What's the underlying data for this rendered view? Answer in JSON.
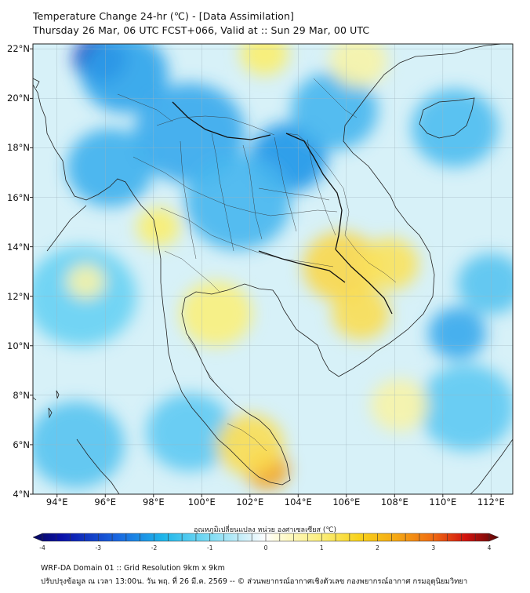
{
  "title": {
    "line1": "Temperature Change 24-hr (℃) - [Data Assimilation]",
    "line2": "Thursday 26 Mar, 06 UTC FCST+066, Valid at :: Sun 29 Mar, 00 UTC"
  },
  "map": {
    "lat_labels": [
      "22°N",
      "20°N",
      "18°N",
      "16°N",
      "14°N",
      "12°N",
      "10°N",
      "8°N",
      "6°N",
      "4°N"
    ],
    "lon_labels": [
      "94°E",
      "96°E",
      "98°E",
      "100°E",
      "102°E",
      "104°E",
      "106°E",
      "108°E",
      "110°E",
      "112°E"
    ],
    "lat_values": [
      22,
      20,
      18,
      16,
      14,
      12,
      10,
      8,
      6,
      4
    ],
    "lon_values": [
      94,
      96,
      98,
      100,
      102,
      104,
      106,
      108,
      110,
      112
    ],
    "lat_range": [
      4,
      22.2
    ],
    "lon_range": [
      93,
      112.9
    ],
    "anomalies": [
      {
        "lon": 95.8,
        "lat": 21.6,
        "value": -3.0,
        "r": 1.1
      },
      {
        "lon": 96.8,
        "lat": 21.0,
        "value": -1.8,
        "r": 1.8
      },
      {
        "lon": 99.5,
        "lat": 18.6,
        "value": -1.7,
        "r": 2.3
      },
      {
        "lon": 96.2,
        "lat": 17.2,
        "value": -1.6,
        "r": 1.8
      },
      {
        "lon": 103.6,
        "lat": 17.6,
        "value": -2.0,
        "r": 1.6
      },
      {
        "lon": 105.5,
        "lat": 19.5,
        "value": -1.5,
        "r": 1.8
      },
      {
        "lon": 101.5,
        "lat": 15.8,
        "value": -1.5,
        "r": 2.2
      },
      {
        "lon": 110.5,
        "lat": 18.8,
        "value": -1.4,
        "r": 1.8
      },
      {
        "lon": 95.0,
        "lat": 12.0,
        "value": -1.1,
        "r": 2.3
      },
      {
        "lon": 110.6,
        "lat": 10.5,
        "value": -1.7,
        "r": 1.2
      },
      {
        "lon": 112.0,
        "lat": 12.5,
        "value": -1.3,
        "r": 1.4
      },
      {
        "lon": 111.0,
        "lat": 7.5,
        "value": -1.2,
        "r": 2.0
      },
      {
        "lon": 94.8,
        "lat": 6.0,
        "value": -1.3,
        "r": 2.0
      },
      {
        "lon": 99.5,
        "lat": 6.5,
        "value": -1.2,
        "r": 1.8
      },
      {
        "lon": 105.8,
        "lat": 13.2,
        "value": 1.4,
        "r": 1.6
      },
      {
        "lon": 106.6,
        "lat": 11.3,
        "value": 1.3,
        "r": 1.2
      },
      {
        "lon": 107.8,
        "lat": 13.3,
        "value": 1.2,
        "r": 1.2
      },
      {
        "lon": 102.7,
        "lat": 5.0,
        "value": 2.2,
        "r": 0.9
      },
      {
        "lon": 102.0,
        "lat": 6.0,
        "value": 1.3,
        "r": 1.4
      },
      {
        "lon": 98.2,
        "lat": 14.8,
        "value": 1.0,
        "r": 0.9
      },
      {
        "lon": 102.6,
        "lat": 21.8,
        "value": 1.0,
        "r": 1.0
      },
      {
        "lon": 100.6,
        "lat": 11.3,
        "value": 0.9,
        "r": 1.5
      },
      {
        "lon": 95.2,
        "lat": 12.6,
        "value": 0.6,
        "r": 0.8
      },
      {
        "lon": 108.2,
        "lat": 7.6,
        "value": 0.6,
        "r": 1.2
      },
      {
        "lon": 106.5,
        "lat": 21.5,
        "value": 0.6,
        "r": 1.2
      }
    ]
  },
  "colorbar": {
    "title": "อุณหภูมิเปลี่ยนแปลง หน่วย องศาเซลเซียส (℃)",
    "ticks": [
      "-4",
      "-3",
      "-2",
      "-1",
      "0",
      "1",
      "2",
      "3",
      "4"
    ],
    "tick_values": [
      -4,
      -3,
      -2,
      -1,
      0,
      1,
      2,
      3,
      4
    ],
    "range": [
      -4,
      4
    ]
  },
  "footer": {
    "line1": "WRF-DA Domain 01 :: Grid Resolution 9km x 9km",
    "line2": "ปรับปรุงข้อมูล ณ เวลา 13:00น. วัน พฤ. ที่ 26 มี.ค. 2569 -- © ส่วนพยากรณ์อากาศเชิงตัวเลข กองพยากรณ์อากาศ กรมอุตุนิยมวิทยา"
  }
}
